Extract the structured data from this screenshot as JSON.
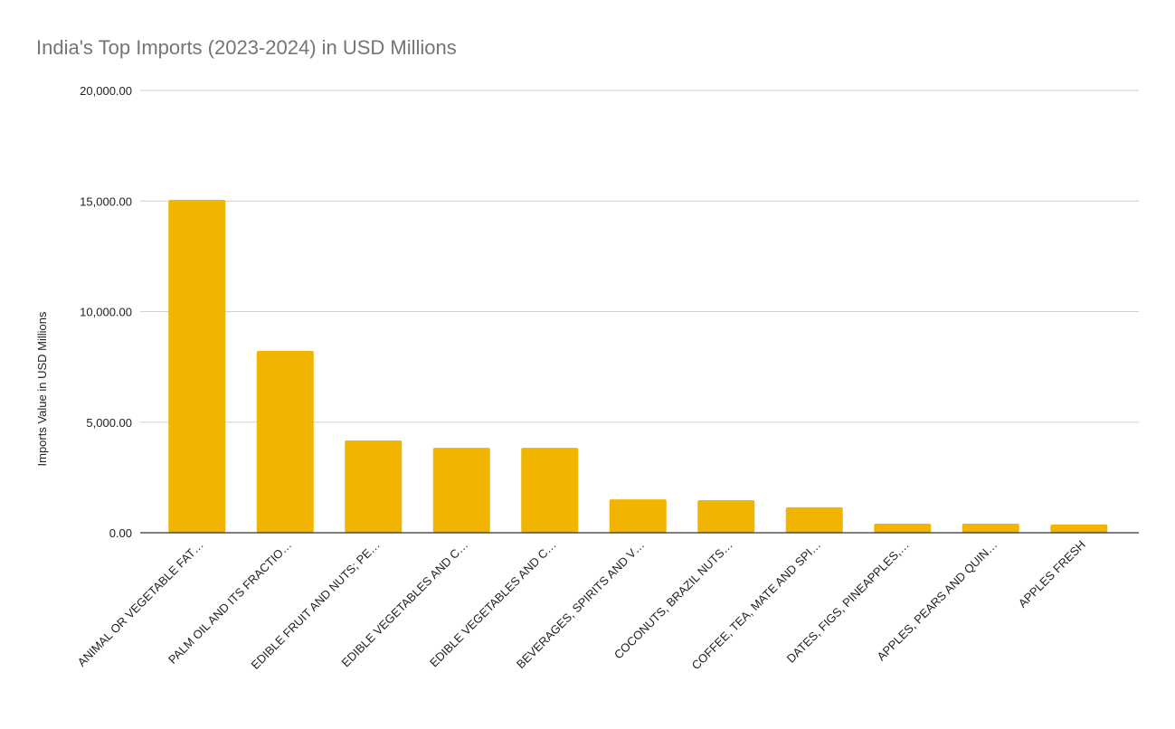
{
  "chart_data": {
    "type": "bar",
    "title": "India's Top Imports (2023-2024) in USD Millions",
    "xlabel": "",
    "ylabel": "Imports Value in USD Millions",
    "ylim": [
      0,
      20000
    ],
    "yticks": [
      0,
      5000,
      10000,
      15000,
      20000
    ],
    "ytick_labels": [
      "0.00",
      "5,000.00",
      "10,000.00",
      "15,000.00",
      "20,000.00"
    ],
    "grid": true,
    "bar_color": "#f1b400",
    "categories": [
      "ANIMAL OR VEGETABLE FAT…",
      "PALM OIL AND ITS FRACTIO…",
      "EDIBLE FRUIT AND NUTS; PE…",
      "EDIBLE VEGETABLES AND C…",
      "EDIBLE VEGETABLES AND C…",
      "BEVERAGES, SPIRITS AND V…",
      "COCONUTS, BRAZIL NUTS…",
      "COFFEE, TEA, MATE AND SPI…",
      "DATES, FIGS, PINEAPPLES,…",
      "APPLES, PEARS AND QUIN…",
      "APPLES FRESH"
    ],
    "values": [
      15050,
      8220,
      4170,
      3840,
      3840,
      1510,
      1470,
      1150,
      410,
      410,
      370
    ]
  }
}
